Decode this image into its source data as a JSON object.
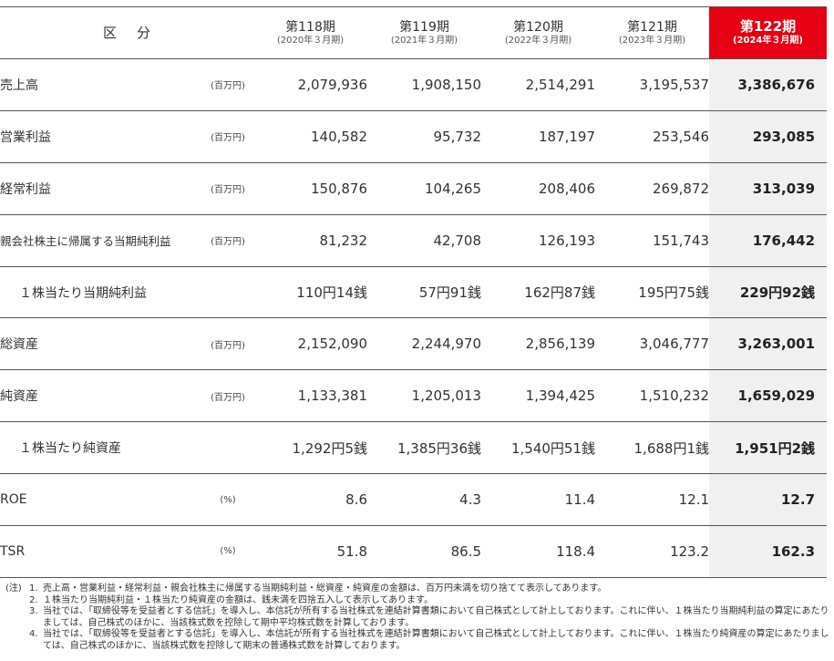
{
  "header": {
    "kubun": "区分",
    "periods": [
      {
        "name": "第118期",
        "date": "(2020年３月期)"
      },
      {
        "name": "第119期",
        "date": "(2021年３月期)"
      },
      {
        "name": "第120期",
        "date": "(2022年３月期)"
      },
      {
        "name": "第121期",
        "date": "(2023年３月期)"
      },
      {
        "name": "第122期",
        "date": "(2024年３月期)"
      }
    ],
    "highlight_color": "#e60012"
  },
  "rows": [
    {
      "label": "売上高",
      "unit": "(百万円)",
      "values": [
        "2,079,936",
        "1,908,150",
        "2,514,291",
        "3,195,537",
        "3,386,676"
      ]
    },
    {
      "label": "営業利益",
      "unit": "(百万円)",
      "values": [
        "140,582",
        "95,732",
        "187,197",
        "253,546",
        "293,085"
      ]
    },
    {
      "label": "経常利益",
      "unit": "(百万円)",
      "values": [
        "150,876",
        "104,265",
        "208,406",
        "269,872",
        "313,039"
      ]
    },
    {
      "label": "親会社株主に帰属する当期純利益",
      "unit": "(百万円)",
      "values": [
        "81,232",
        "42,708",
        "126,193",
        "151,743",
        "176,442"
      ]
    },
    {
      "label": "１株当たり当期純利益",
      "unit": "",
      "values": [
        "110円14銭",
        "57円91銭",
        "162円87銭",
        "195円75銭",
        "229円92銭"
      ]
    },
    {
      "label": "総資産",
      "unit": "(百万円)",
      "values": [
        "2,152,090",
        "2,244,970",
        "2,856,139",
        "3,046,777",
        "3,263,001"
      ]
    },
    {
      "label": "純資産",
      "unit": "(百万円)",
      "values": [
        "1,133,381",
        "1,205,013",
        "1,394,425",
        "1,510,232",
        "1,659,029"
      ]
    },
    {
      "label": "１株当たり純資産",
      "unit": "",
      "values": [
        "1,292円5銭",
        "1,385円36銭",
        "1,540円51銭",
        "1,688円1銭",
        "1,951円2銭"
      ]
    },
    {
      "label": "ROE",
      "unit": "(%)",
      "values": [
        "8.6",
        "4.3",
        "11.4",
        "12.1",
        "12.7"
      ]
    },
    {
      "label": "TSR",
      "unit": "(%)",
      "values": [
        "51.8",
        "86.5",
        "118.4",
        "123.2",
        "162.3"
      ]
    }
  ],
  "notes": {
    "prefix": "(注)",
    "items": [
      {
        "num": "1.",
        "text": "売上高・営業利益・経常利益・親会社株主に帰属する当期純利益・総資産・純資産の金額は、百万円未満を切り捨てて表示してあります。"
      },
      {
        "num": "2.",
        "text": "１株当たり当期純利益・１株当たり純資産の金額は、銭未満を四捨五入して表示してあります。"
      },
      {
        "num": "3.",
        "text": "当社では、「取締役等を受益者とする信託」を導入し、本信託が所有する当社株式を連結計算書類において自己株式として計上しております。これに伴い、１株当たり当期純利益の算定にあたりましては、自己株式のほかに、当該株式数を控除して期中平均株式数を計算しております。"
      },
      {
        "num": "4.",
        "text": "当社では、「取締役等を受益者とする信託」を導入し、本信託が所有する当社株式を連結計算書類において自己株式として計上しております。これに伴い、１株当たり純資産の算定にあたりましては、自己株式のほかに、当該株式数を控除して期末の普通株式数を計算しております。"
      }
    ]
  }
}
